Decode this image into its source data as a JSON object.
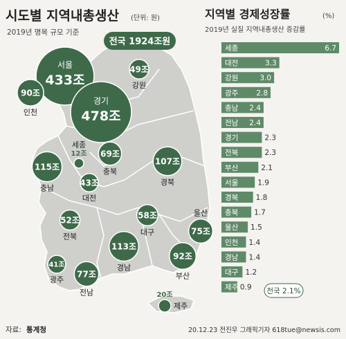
{
  "left": {
    "title": "시도별 지역내총생산",
    "unit": "(단위: 원)",
    "subtitle": "2019년 명목 규모 기준",
    "national_badge": "전국 1924조원",
    "source_label": "자료:",
    "source_name": "통계청"
  },
  "right": {
    "title": "지역별 경제성장률",
    "unit": "(%)",
    "subtitle": "2019년 실질 지역내총생산 증감률"
  },
  "credit": "20.12.23 전진우 그래픽기자 618tue@newsis.com",
  "colors": {
    "bubble": "#3e6a4a",
    "bubble_stroke": "#ffffff",
    "bar": "#5f8a68",
    "bar_highlight": "#3e6a4a",
    "map_land": "#cfcfcb",
    "map_border": "#ffffff",
    "background": "#f4f3ef"
  },
  "chart_data": [
    {
      "type": "bubble",
      "title": "시도별 지역내총생산",
      "unit": "조원",
      "regions": [
        {
          "name": "서울",
          "value": 433,
          "value_label": "433조"
        },
        {
          "name": "경기",
          "value": 478,
          "value_label": "478조"
        },
        {
          "name": "인천",
          "value": 90,
          "value_label": "90조"
        },
        {
          "name": "강원",
          "value": 49,
          "value_label": "49조"
        },
        {
          "name": "세종",
          "value": 12,
          "value_label": "12조"
        },
        {
          "name": "충북",
          "value": 69,
          "value_label": "69조"
        },
        {
          "name": "충남",
          "value": 115,
          "value_label": "115조"
        },
        {
          "name": "대전",
          "value": 43,
          "value_label": "43조"
        },
        {
          "name": "경북",
          "value": 107,
          "value_label": "107조"
        },
        {
          "name": "전북",
          "value": 52,
          "value_label": "52조"
        },
        {
          "name": "대구",
          "value": 58,
          "value_label": "58조"
        },
        {
          "name": "울산",
          "value": 75,
          "value_label": "75조"
        },
        {
          "name": "경남",
          "value": 113,
          "value_label": "113조"
        },
        {
          "name": "광주",
          "value": 41,
          "value_label": "41조"
        },
        {
          "name": "전남",
          "value": 77,
          "value_label": "77조"
        },
        {
          "name": "부산",
          "value": 92,
          "value_label": "92조"
        },
        {
          "name": "제주",
          "value": 20,
          "value_label": "20조"
        }
      ],
      "national_total": "1924조원"
    },
    {
      "type": "bar",
      "orientation": "horizontal",
      "title": "지역별 경제성장률",
      "unit": "%",
      "categories": [
        "세종",
        "대전",
        "강원",
        "광주",
        "충남",
        "전남",
        "경기",
        "전북",
        "부산",
        "서울",
        "경북",
        "충북",
        "울산",
        "인천",
        "경남",
        "대구",
        "제주"
      ],
      "values": [
        6.7,
        3.3,
        3.0,
        2.8,
        2.4,
        2.4,
        2.3,
        2.3,
        2.1,
        1.9,
        1.8,
        1.7,
        1.5,
        1.4,
        1.4,
        1.2,
        0.9
      ],
      "value_labels": [
        "6.7",
        "3.3",
        "3.0",
        "2.8",
        "2.4",
        "2.4",
        "2.3",
        "2.3",
        "2.1",
        "1.9",
        "1.8",
        "1.7",
        "1.5",
        "1.4",
        "1.4",
        "1.2",
        "0.9"
      ],
      "xlim": [
        0,
        6.7
      ],
      "reference": {
        "label": "전국 2.1%",
        "value": 2.1
      }
    }
  ]
}
